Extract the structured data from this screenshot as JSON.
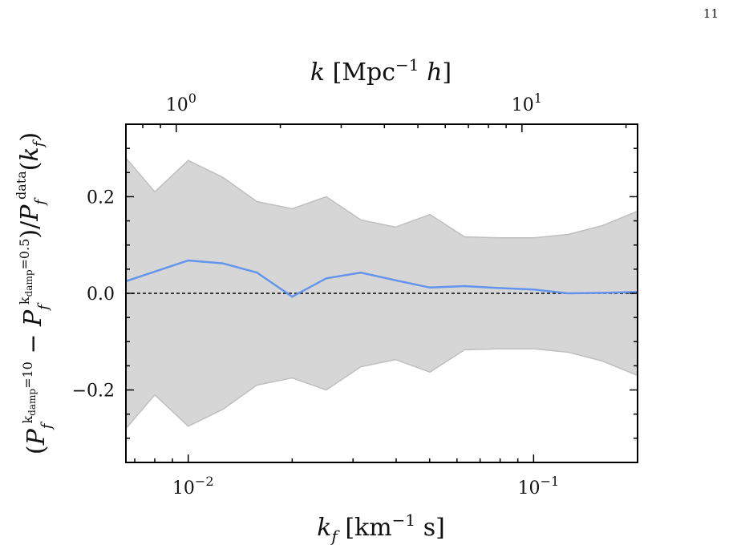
{
  "page": {
    "number": "11"
  },
  "chart_data": {
    "type": "line",
    "xscale": "log",
    "xlim": [
      0.0066,
      0.2
    ],
    "ylim": [
      -0.35,
      0.35
    ],
    "xlabel": "k_f [km^-1 s]",
    "ylabel": "(P_f^{k_damp=10} − P_f^{k_damp=0.5}) / P_f^{data}(k_f)",
    "top_xlabel": "k [Mpc^-1 h]",
    "top_xlim": [
      0.715,
      21.6
    ],
    "top_xscale": "log",
    "x_ticks": [
      {
        "value": 0.01,
        "base": "10",
        "exp": "−2"
      },
      {
        "value": 0.1,
        "base": "10",
        "exp": "−1"
      }
    ],
    "top_ticks": [
      {
        "value": 1,
        "base": "10",
        "exp": "0"
      },
      {
        "value": 10,
        "base": "10",
        "exp": "1"
      }
    ],
    "y_ticks": [
      {
        "value": -0.2,
        "label": "−0.2"
      },
      {
        "value": 0.0,
        "label": "0.0"
      },
      {
        "value": 0.2,
        "label": "0.2"
      }
    ],
    "y_minor_step": 0.05,
    "zero_line": {
      "value": 0.0,
      "style": "dashed",
      "color": "#000000"
    },
    "band": {
      "color": "#d6d6d6",
      "edge_color": "#bfbfbf",
      "x": [
        0.0066,
        0.008,
        0.01,
        0.0126,
        0.0158,
        0.02,
        0.0251,
        0.0316,
        0.0398,
        0.0501,
        0.0631,
        0.0794,
        0.1,
        0.126,
        0.158,
        0.2
      ],
      "upper": [
        0.28,
        0.21,
        0.275,
        0.24,
        0.19,
        0.175,
        0.2,
        0.152,
        0.137,
        0.163,
        0.117,
        0.115,
        0.115,
        0.122,
        0.14,
        0.17
      ],
      "lower": [
        -0.28,
        -0.21,
        -0.275,
        -0.24,
        -0.19,
        -0.175,
        -0.2,
        -0.152,
        -0.137,
        -0.163,
        -0.117,
        -0.115,
        -0.115,
        -0.122,
        -0.14,
        -0.17
      ]
    },
    "series": [
      {
        "color": "#6495ed",
        "x": [
          0.0066,
          0.01,
          0.0126,
          0.0158,
          0.02,
          0.0251,
          0.0316,
          0.0398,
          0.0501,
          0.0631,
          0.0794,
          0.1,
          0.126,
          0.158,
          0.2
        ],
        "y": [
          0.025,
          0.068,
          0.062,
          0.043,
          -0.007,
          0.031,
          0.043,
          0.027,
          0.012,
          0.015,
          0.011,
          0.008,
          0.0,
          0.001,
          0.003
        ]
      }
    ]
  }
}
